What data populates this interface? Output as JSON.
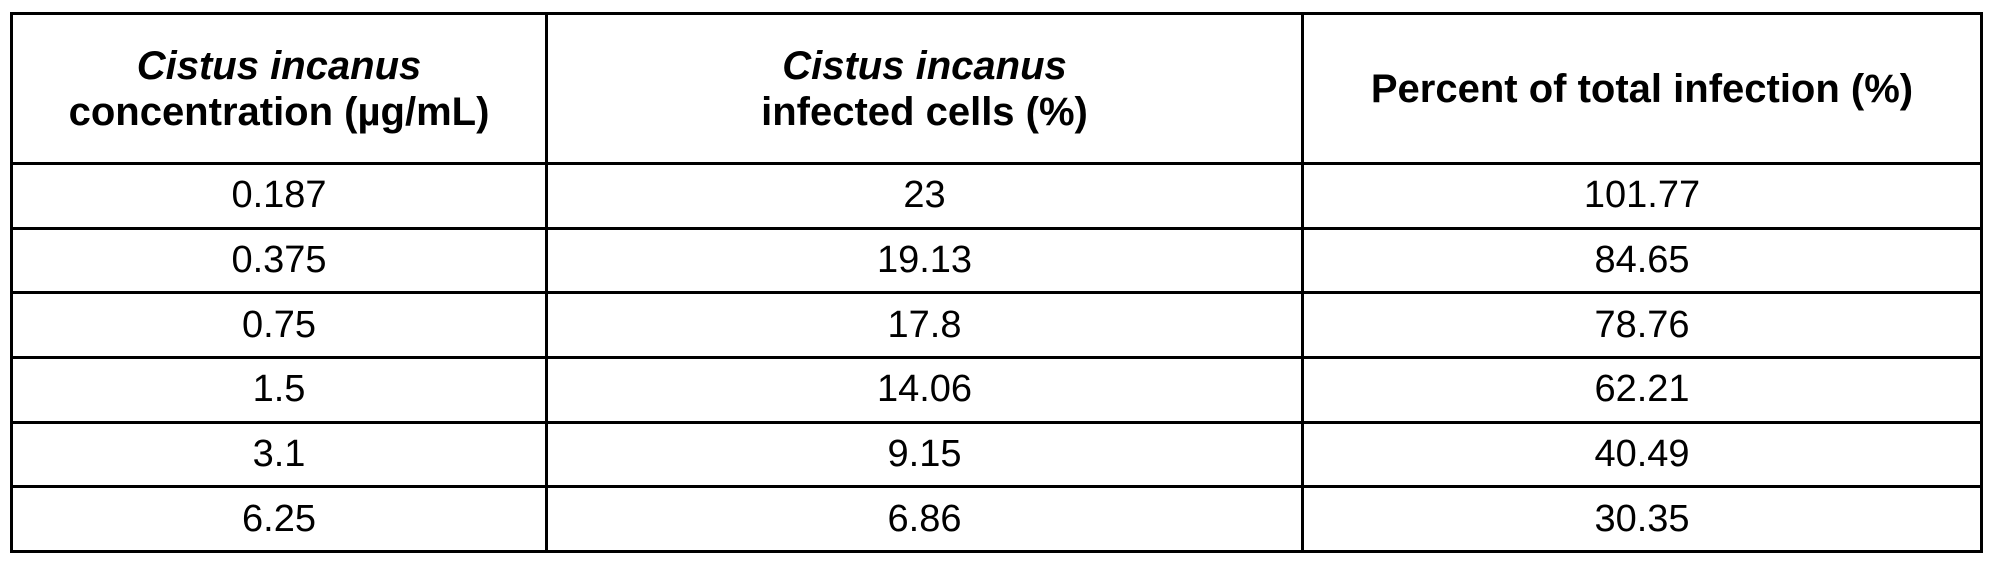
{
  "table": {
    "headers": [
      {
        "italic_part": "Cistus incanus",
        "rest": "concentration (µg/mL)"
      },
      {
        "italic_part": "Cistus incanus",
        "rest": "infected cells (%)"
      },
      {
        "italic_part": "",
        "rest": "Percent of total infection (%)"
      }
    ],
    "rows": [
      [
        "0.187",
        "23",
        "101.77"
      ],
      [
        "0.375",
        "19.13",
        "84.65"
      ],
      [
        "0.75",
        "17.8",
        "78.76"
      ],
      [
        "1.5",
        "14.06",
        "62.21"
      ],
      [
        "3.1",
        "9.15",
        "40.49"
      ],
      [
        "6.25",
        "6.86",
        "30.35"
      ]
    ]
  }
}
